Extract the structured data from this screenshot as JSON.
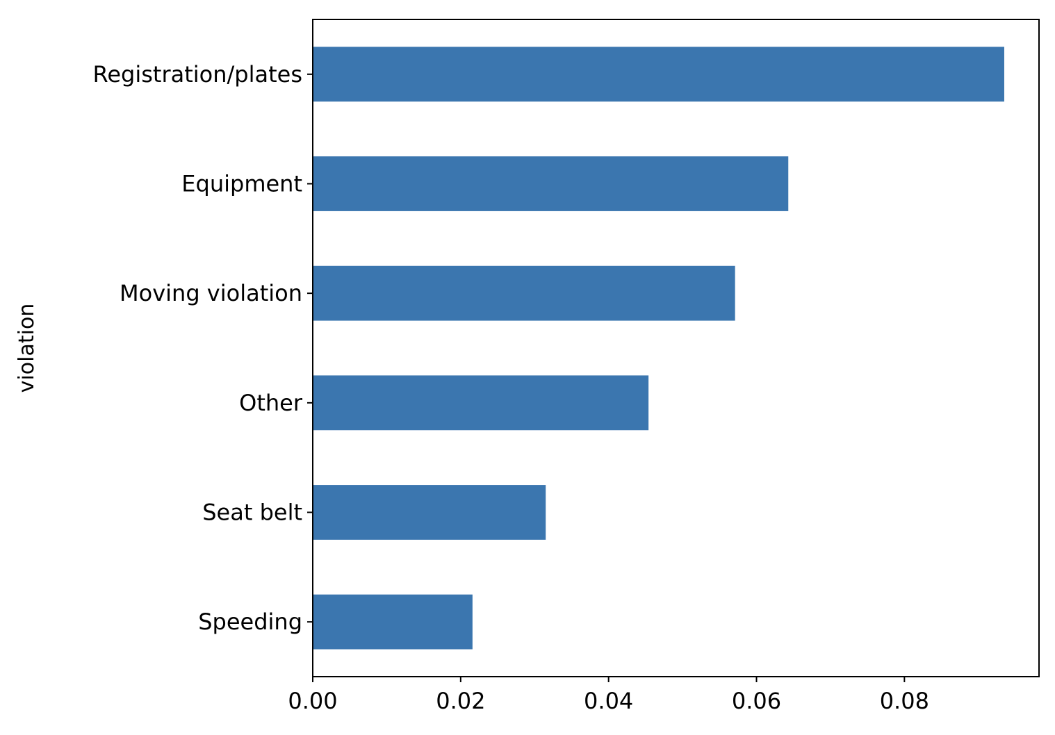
{
  "chart_data": {
    "type": "bar",
    "orientation": "horizontal",
    "categories": [
      "Registration/plates",
      "Equipment",
      "Moving violation",
      "Other",
      "Seat belt",
      "Speeding"
    ],
    "values": [
      0.0935,
      0.0643,
      0.0571,
      0.0454,
      0.0315,
      0.0216
    ],
    "xticks": [
      "0.00",
      "0.02",
      "0.04",
      "0.06",
      "0.08"
    ],
    "xtick_values": [
      0.0,
      0.02,
      0.04,
      0.06,
      0.08
    ],
    "xlim": [
      0,
      0.0982
    ],
    "xlabel": "",
    "ylabel": "violation",
    "title": "",
    "bar_color": "#3b76af",
    "grid": false,
    "legend": "none"
  }
}
